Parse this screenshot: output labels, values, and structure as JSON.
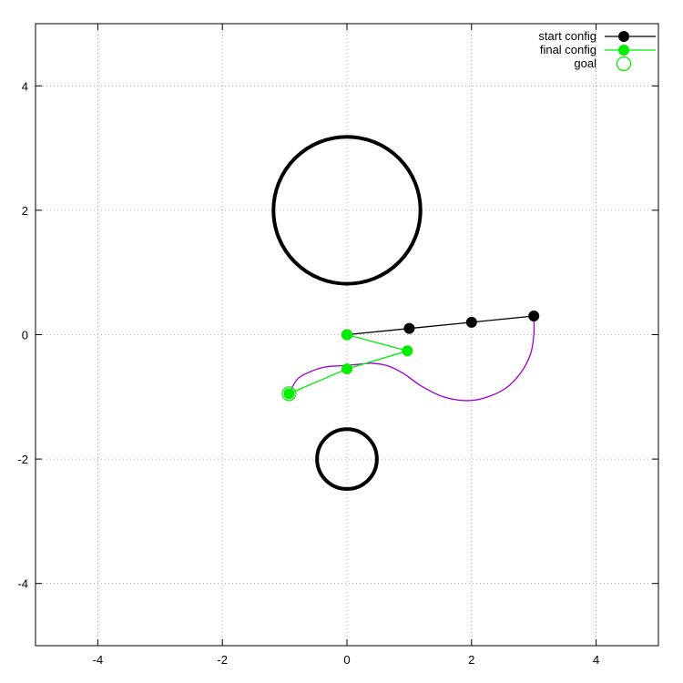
{
  "chart_data": {
    "type": "line",
    "xlim": [
      -5,
      5
    ],
    "ylim": [
      -5,
      5
    ],
    "x_ticks": [
      -4,
      -2,
      0,
      2,
      4
    ],
    "y_ticks": [
      -4,
      -2,
      0,
      2,
      4
    ],
    "grid": true,
    "grid_style": "dotted",
    "legend_position": "top-right",
    "series": [
      {
        "name": "start config",
        "color": "#000000",
        "points": [
          [
            0,
            0
          ],
          [
            1,
            0.1
          ],
          [
            2,
            0.2
          ],
          [
            3,
            0.3
          ]
        ]
      },
      {
        "name": "final config",
        "color": "#00ee00",
        "points": [
          [
            0,
            0
          ],
          [
            0.97,
            -0.26
          ],
          [
            0,
            -0.55
          ],
          [
            -0.93,
            -0.95
          ]
        ]
      },
      {
        "name": "goal",
        "color": "#00ee00",
        "marker": "open-circle",
        "points": [
          [
            -0.93,
            -0.95
          ]
        ]
      }
    ],
    "trajectory": {
      "color": "#9900cc",
      "points": [
        [
          3.0,
          0.3
        ],
        [
          3.0,
          0.0
        ],
        [
          2.95,
          -0.3
        ],
        [
          2.8,
          -0.6
        ],
        [
          2.55,
          -0.86
        ],
        [
          2.2,
          -1.02
        ],
        [
          1.9,
          -1.06
        ],
        [
          1.55,
          -1.0
        ],
        [
          1.2,
          -0.83
        ],
        [
          0.9,
          -0.62
        ],
        [
          0.65,
          -0.5
        ],
        [
          0.4,
          -0.46
        ],
        [
          0.15,
          -0.48
        ],
        [
          -0.1,
          -0.5
        ],
        [
          -0.35,
          -0.52
        ],
        [
          -0.6,
          -0.6
        ],
        [
          -0.8,
          -0.72
        ],
        [
          -0.93,
          -0.95
        ]
      ]
    },
    "obstacles": [
      {
        "cx": 0,
        "cy": 2,
        "r": 1.18,
        "color": "#000000"
      },
      {
        "cx": 0,
        "cy": -2,
        "r": 0.48,
        "color": "#000000"
      }
    ]
  }
}
